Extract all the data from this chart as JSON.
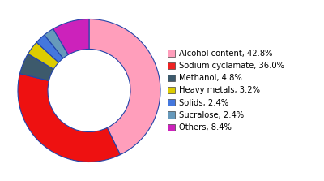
{
  "labels": [
    "Alcohol content, 42.8%",
    "Sodium cyclamate, 36.0%",
    "Methanol, 4.8%",
    "Heavy metals, 3.2%",
    "Solids, 2.4%",
    "Sucralose, 2.4%",
    "Others, 8.4%"
  ],
  "values": [
    42.8,
    36.0,
    4.8,
    3.2,
    2.4,
    2.4,
    8.4
  ],
  "colors": [
    "#FF9EBB",
    "#EE1111",
    "#3D5A6C",
    "#DDCC00",
    "#4477DD",
    "#6699BB",
    "#CC22BB"
  ],
  "wedge_edge_color": "#2244AA",
  "wedge_edge_width": 0.8,
  "startangle": 90,
  "donut_width": 0.42,
  "figsize": [
    4.0,
    2.23
  ],
  "dpi": 100,
  "legend_fontsize": 7.2,
  "background_color": "#FFFFFF",
  "legend_colors": [
    "#FF9EBB",
    "#EE2222",
    "#3D5A6C",
    "#DDCC00",
    "#4477DD",
    "#6699BB",
    "#CC22BB"
  ]
}
